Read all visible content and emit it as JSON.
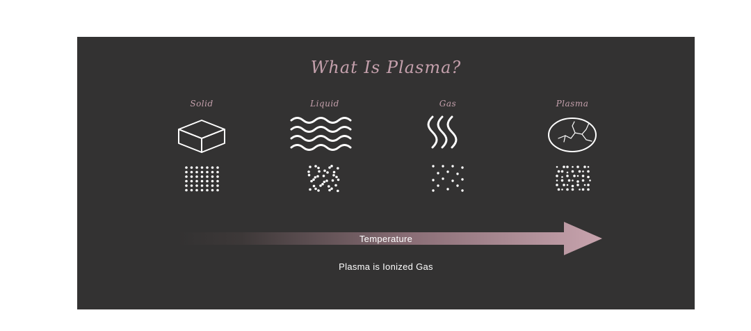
{
  "title": "What Is Plasma?",
  "states": [
    {
      "label": "Solid",
      "icon": "cube-icon",
      "particles": "tightly-packed-grid"
    },
    {
      "label": "Liquid",
      "icon": "waves-icon",
      "particles": "loosely-packed-cluster"
    },
    {
      "label": "Gas",
      "icon": "vapor-icon",
      "particles": "sparse-scattered"
    },
    {
      "label": "Plasma",
      "icon": "lightning-globe-icon",
      "particles": "grid-with-free-particles"
    }
  ],
  "arrow": {
    "label": "Temperature",
    "color_start": "#333232",
    "color_end": "#c4a0ac"
  },
  "caption": "Plasma is Ionized Gas",
  "colors": {
    "background": "#333232",
    "accent": "#c4a0ac",
    "icon": "#ffffff"
  }
}
